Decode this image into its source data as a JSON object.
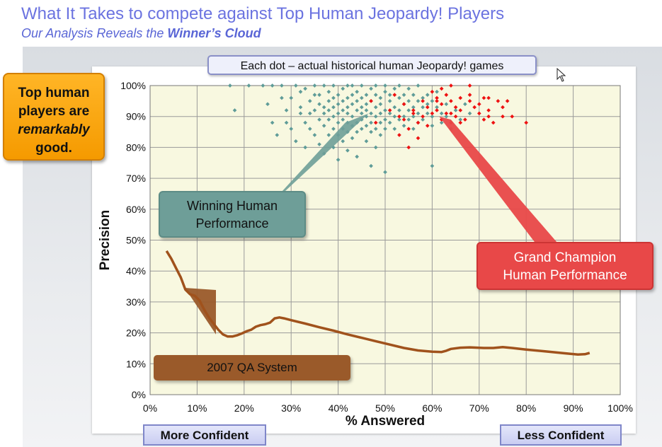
{
  "header": {
    "title": "What It Takes to compete against Top Human Jeopardy!  Players",
    "subtitle_pre": "Our Analysis Reveals the ",
    "subtitle_bold": "Winner’s Cloud"
  },
  "callouts": {
    "top_label": "Each dot –  actual historical human Jeopardy! games",
    "orange_line1": "Top human",
    "orange_line2": "players are",
    "orange_line3": "remarkably",
    "orange_line4": "good.",
    "teal_line1": "Winning Human",
    "teal_line2": "Performance",
    "red_line1": "Grand Champion",
    "red_line2": "Human Performance",
    "brown": "2007 QA System"
  },
  "nav": {
    "left": "More Confident",
    "right": "Less Confident"
  },
  "colors": {
    "teal_dots": "#5f9c98",
    "red_dots": "#ee1111",
    "qa_line": "#a0521c",
    "plot_bg": "#f8f8e0",
    "grid": "#9a9a9a"
  },
  "chart_data": {
    "type": "scatter",
    "xlabel": "% Answered",
    "ylabel": "Precision",
    "xlim": [
      0,
      100
    ],
    "ylim": [
      0,
      100
    ],
    "x_ticks": [
      "0%",
      "10%",
      "20%",
      "30%",
      "40%",
      "50%",
      "60%",
      "70%",
      "80%",
      "90%",
      "100%"
    ],
    "y_ticks": [
      "0%",
      "10%",
      "20%",
      "30%",
      "40%",
      "50%",
      "60%",
      "70%",
      "80%",
      "90%",
      "100%"
    ],
    "grid": true,
    "series": [
      {
        "kind": "teal-cloud",
        "points": [
          [
            17,
            100
          ],
          [
            18,
            92
          ],
          [
            21,
            100
          ],
          [
            24,
            100
          ],
          [
            25,
            94
          ],
          [
            26,
            100
          ],
          [
            26,
            88
          ],
          [
            27,
            84
          ],
          [
            28,
            96
          ],
          [
            28,
            100
          ],
          [
            29,
            92
          ],
          [
            29,
            88
          ],
          [
            30,
            86
          ],
          [
            30,
            96
          ],
          [
            31,
            100
          ],
          [
            31,
            82
          ],
          [
            32,
            98
          ],
          [
            32,
            91
          ],
          [
            32,
            93
          ],
          [
            33,
            88
          ],
          [
            33,
            80
          ],
          [
            33,
            99
          ],
          [
            34,
            95
          ],
          [
            34,
            91
          ],
          [
            34,
            86
          ],
          [
            35,
            97
          ],
          [
            35,
            84
          ],
          [
            35,
            100
          ],
          [
            35,
            92
          ],
          [
            36,
            89
          ],
          [
            36,
            94
          ],
          [
            36,
            81
          ],
          [
            36,
            97
          ],
          [
            37,
            91
          ],
          [
            37,
            87
          ],
          [
            37,
            100
          ],
          [
            37,
            78
          ],
          [
            37,
            93
          ],
          [
            38,
            95
          ],
          [
            38,
            89
          ],
          [
            38,
            84
          ],
          [
            38,
            98
          ],
          [
            38,
            92
          ],
          [
            39,
            96
          ],
          [
            39,
            90
          ],
          [
            39,
            86
          ],
          [
            39,
            80
          ],
          [
            39,
            100
          ],
          [
            39,
            93
          ],
          [
            40,
            88
          ],
          [
            40,
            94
          ],
          [
            40,
            97
          ],
          [
            40,
            84
          ],
          [
            40,
            91
          ],
          [
            40,
            76
          ],
          [
            41,
            99
          ],
          [
            41,
            92
          ],
          [
            41,
            86
          ],
          [
            41,
            95
          ],
          [
            41,
            89
          ],
          [
            41,
            82
          ],
          [
            42,
            100
          ],
          [
            42,
            93
          ],
          [
            42,
            88
          ],
          [
            42,
            96
          ],
          [
            42,
            85
          ],
          [
            42,
            91
          ],
          [
            42,
            79
          ],
          [
            43,
            97
          ],
          [
            43,
            90
          ],
          [
            43,
            94
          ],
          [
            43,
            87
          ],
          [
            43,
            83
          ],
          [
            43,
            100
          ],
          [
            44,
            92
          ],
          [
            44,
            95
          ],
          [
            44,
            88
          ],
          [
            44,
            85
          ],
          [
            44,
            98
          ],
          [
            44,
            77
          ],
          [
            45,
            91
          ],
          [
            45,
            96
          ],
          [
            45,
            89
          ],
          [
            45,
            93
          ],
          [
            45,
            86
          ],
          [
            45,
            100
          ],
          [
            46,
            94
          ],
          [
            46,
            90
          ],
          [
            46,
            87
          ],
          [
            46,
            97
          ],
          [
            46,
            82
          ],
          [
            46,
            92
          ],
          [
            47,
            99
          ],
          [
            47,
            95
          ],
          [
            47,
            91
          ],
          [
            47,
            88
          ],
          [
            47,
            85
          ],
          [
            47,
            74
          ],
          [
            48,
            93
          ],
          [
            48,
            97
          ],
          [
            48,
            90
          ],
          [
            48,
            86
          ],
          [
            48,
            100
          ],
          [
            48,
            80
          ],
          [
            49,
            94
          ],
          [
            49,
            91
          ],
          [
            49,
            88
          ],
          [
            49,
            96
          ],
          [
            49,
            84
          ],
          [
            50,
            92
          ],
          [
            50,
            98
          ],
          [
            50,
            89
          ],
          [
            50,
            86
          ],
          [
            50,
            100
          ],
          [
            50,
            72
          ],
          [
            51,
            95
          ],
          [
            51,
            91
          ],
          [
            51,
            88
          ],
          [
            51,
            97
          ],
          [
            52,
            93
          ],
          [
            52,
            90
          ],
          [
            52,
            99
          ],
          [
            52,
            86
          ],
          [
            53,
            96
          ],
          [
            53,
            92
          ],
          [
            53,
            89
          ],
          [
            53,
            100
          ],
          [
            54,
            94
          ],
          [
            54,
            90
          ],
          [
            54,
            97
          ],
          [
            54,
            87
          ],
          [
            55,
            92
          ],
          [
            55,
            99
          ],
          [
            55,
            95
          ],
          [
            55,
            89
          ],
          [
            56,
            93
          ],
          [
            56,
            90
          ],
          [
            56,
            97
          ],
          [
            56,
            86
          ],
          [
            57,
            95
          ],
          [
            57,
            91
          ],
          [
            57,
            100
          ],
          [
            57,
            88
          ],
          [
            58,
            93
          ],
          [
            58,
            96
          ],
          [
            58,
            89
          ],
          [
            59,
            91
          ],
          [
            59,
            97
          ],
          [
            59,
            94
          ],
          [
            60,
            90
          ],
          [
            60,
            95
          ],
          [
            60,
            87
          ],
          [
            60,
            74
          ],
          [
            61,
            93
          ],
          [
            61,
            98
          ],
          [
            62,
            91
          ],
          [
            62,
            88
          ],
          [
            63,
            94
          ],
          [
            63,
            90
          ],
          [
            64,
            86
          ],
          [
            65,
            92
          ],
          [
            66,
            89
          ],
          [
            67,
            94
          ],
          [
            68,
            91
          ]
        ]
      },
      {
        "kind": "red-cloud",
        "points": [
          [
            47,
            95
          ],
          [
            48,
            88
          ],
          [
            51,
            92
          ],
          [
            52,
            97
          ],
          [
            53,
            90
          ],
          [
            54,
            94
          ],
          [
            54,
            89
          ],
          [
            55,
            86
          ],
          [
            56,
            92
          ],
          [
            56,
            91
          ],
          [
            57,
            88
          ],
          [
            58,
            95
          ],
          [
            58,
            90
          ],
          [
            59,
            93
          ],
          [
            59,
            87
          ],
          [
            60,
            91
          ],
          [
            61,
            96
          ],
          [
            61,
            92
          ],
          [
            62,
            94
          ],
          [
            62,
            89
          ],
          [
            63,
            97
          ],
          [
            63,
            91
          ],
          [
            64,
            95
          ],
          [
            64,
            88
          ],
          [
            65,
            93
          ],
          [
            65,
            90
          ],
          [
            66,
            96
          ],
          [
            66,
            92
          ],
          [
            67,
            89
          ],
          [
            68,
            95
          ],
          [
            68,
            100
          ],
          [
            69,
            93
          ],
          [
            70,
            91
          ],
          [
            71,
            96
          ],
          [
            71,
            89
          ],
          [
            72,
            96
          ],
          [
            72,
            92
          ],
          [
            73,
            88
          ],
          [
            74,
            95
          ],
          [
            75,
            93
          ],
          [
            75,
            90
          ],
          [
            76,
            95
          ],
          [
            77,
            90
          ],
          [
            80,
            88
          ],
          [
            53,
            84
          ],
          [
            57,
            83
          ],
          [
            55,
            80
          ],
          [
            61,
            95
          ],
          [
            64,
            91
          ],
          [
            66,
            88
          ],
          [
            60,
            98
          ],
          [
            68,
            97
          ],
          [
            62,
            99
          ],
          [
            64,
            100
          ],
          [
            70,
            94
          ],
          [
            72,
            90
          ]
        ]
      },
      {
        "name": "2007 QA System",
        "kind": "line",
        "points": [
          [
            3.5,
            46.5
          ],
          [
            4.5,
            44
          ],
          [
            5.5,
            41
          ],
          [
            6.5,
            38
          ],
          [
            7.5,
            34
          ],
          [
            8.5,
            32.5
          ],
          [
            9.5,
            32
          ],
          [
            10.5,
            30.5
          ],
          [
            11.5,
            27.5
          ],
          [
            12.5,
            25
          ],
          [
            13.5,
            23
          ],
          [
            14.5,
            21
          ],
          [
            15.5,
            19.5
          ],
          [
            16.5,
            18.8
          ],
          [
            17.5,
            18.8
          ],
          [
            18.5,
            19.2
          ],
          [
            19.5,
            19.8
          ],
          [
            20.5,
            20.5
          ],
          [
            21.5,
            21
          ],
          [
            22.5,
            22
          ],
          [
            23.5,
            22.5
          ],
          [
            24.5,
            22.8
          ],
          [
            25.5,
            23.3
          ],
          [
            26.5,
            24.7
          ],
          [
            27.5,
            25
          ],
          [
            28.5,
            24.7
          ],
          [
            30,
            24.1
          ],
          [
            33,
            23
          ],
          [
            36,
            21.8
          ],
          [
            39,
            20.7
          ],
          [
            42,
            19.5
          ],
          [
            45,
            18.4
          ],
          [
            48,
            17.3
          ],
          [
            51,
            16.2
          ],
          [
            54,
            15.1
          ],
          [
            57,
            14.3
          ],
          [
            60,
            13.9
          ],
          [
            62,
            13.8
          ],
          [
            63,
            14.2
          ],
          [
            64,
            14.8
          ],
          [
            66,
            15.2
          ],
          [
            68,
            15.3
          ],
          [
            71,
            15.1
          ],
          [
            73,
            15.1
          ],
          [
            75,
            15.4
          ],
          [
            77,
            15.1
          ],
          [
            80,
            14.6
          ],
          [
            84,
            14
          ],
          [
            88,
            13.4
          ],
          [
            91,
            13
          ],
          [
            92.5,
            13.1
          ],
          [
            93.5,
            13.5
          ]
        ]
      }
    ]
  }
}
